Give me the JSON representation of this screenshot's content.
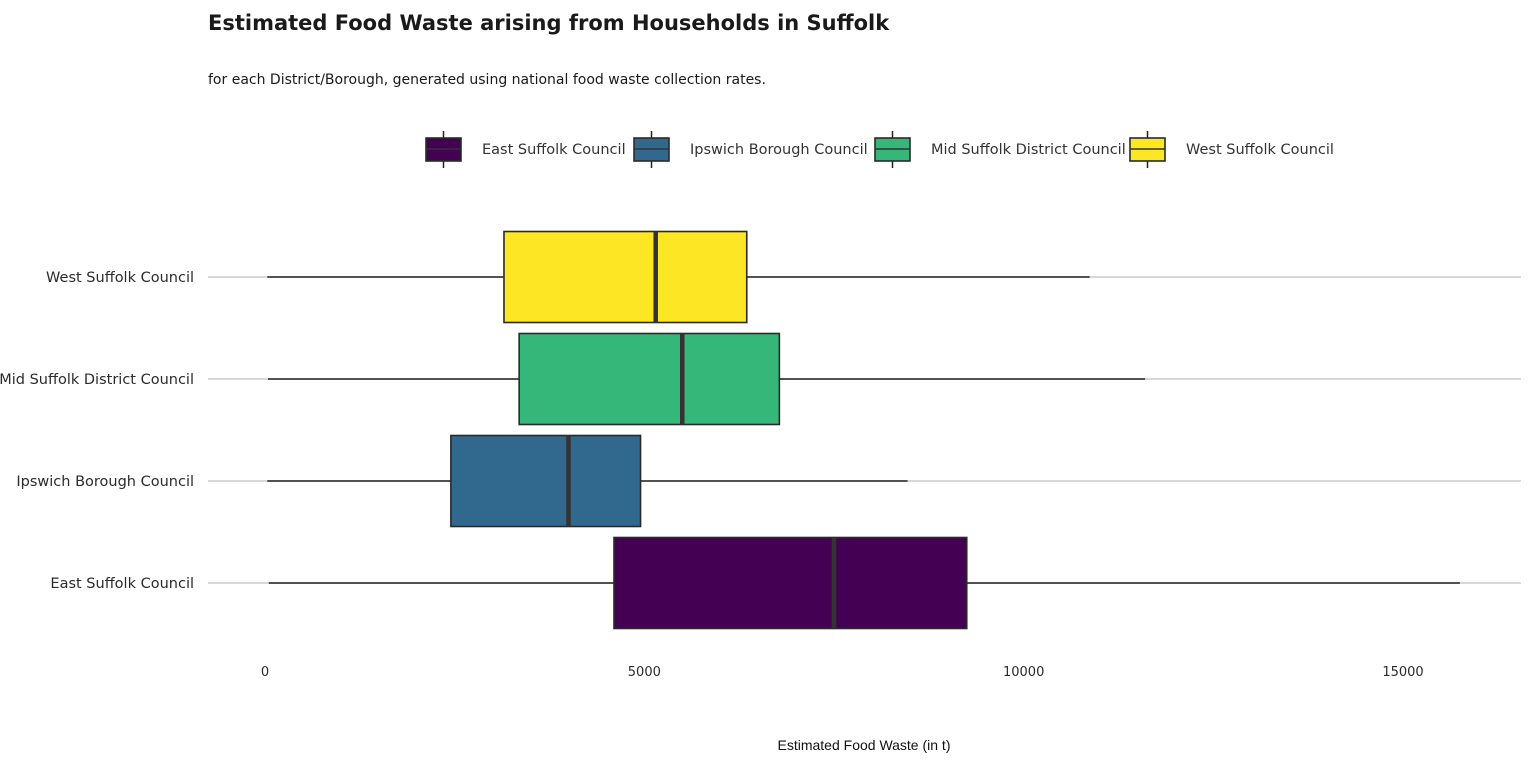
{
  "chart_data": {
    "type": "boxplot",
    "orientation": "horizontal",
    "title": "Estimated Food Waste arising from Households in Suffolk",
    "subtitle": "for each District/Borough, generated using national food waste collection rates.",
    "xlabel": "Estimated Food Waste (in t)",
    "ylabel": "",
    "xlim": [
      -750,
      16600
    ],
    "xticks": [
      0,
      5000,
      10000,
      15000
    ],
    "grid": "horizontal-only",
    "legend_position": "top",
    "series": [
      {
        "name": "East Suffolk Council",
        "color": "#440154",
        "min": 50,
        "q1": 4600,
        "median": 7500,
        "q3": 9250,
        "max": 15750
      },
      {
        "name": "Ipswich Borough Council",
        "color": "#31688e",
        "min": 30,
        "q1": 2450,
        "median": 4000,
        "q3": 4950,
        "max": 8470
      },
      {
        "name": "Mid Suffolk District Council",
        "color": "#35b779",
        "min": 40,
        "q1": 3350,
        "median": 5500,
        "q3": 6780,
        "max": 11600
      },
      {
        "name": "West Suffolk Council",
        "color": "#fde725",
        "min": 30,
        "q1": 3150,
        "median": 5150,
        "q3": 6350,
        "max": 10870
      }
    ]
  }
}
